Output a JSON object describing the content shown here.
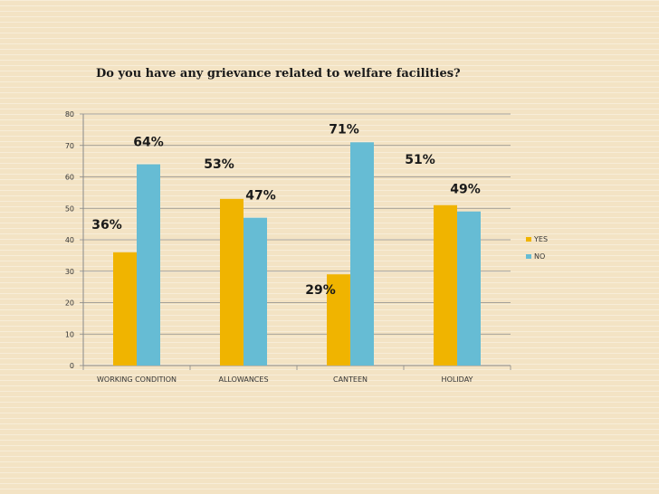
{
  "chart_data": {
    "type": "bar",
    "title": "Do you have any grievance related to welfare facilities?",
    "categories": [
      "WORKING CONDITION",
      "ALLOWANCES",
      "CANTEEN",
      "HOLIDAY"
    ],
    "series": [
      {
        "name": "YES",
        "color": "#f0b400",
        "values": [
          36,
          53,
          29,
          51
        ],
        "labels": [
          "36%",
          "53%",
          "29%",
          "51%"
        ]
      },
      {
        "name": "NO",
        "color": "#66bcd4",
        "values": [
          64,
          47,
          71,
          49
        ],
        "labels": [
          "64%",
          "47%",
          "71%",
          "49%"
        ]
      }
    ],
    "ylim": [
      0,
      80
    ],
    "yticks": [
      0,
      10,
      20,
      30,
      40,
      50,
      60,
      70,
      80
    ],
    "grid": true,
    "legend_position": "right"
  }
}
